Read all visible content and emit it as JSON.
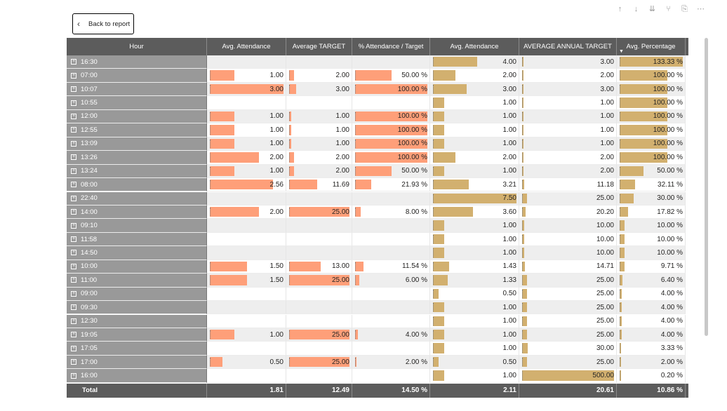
{
  "back_button": {
    "label": "Back to report",
    "icon": "chevron-left-icon"
  },
  "header_icons": [
    "arrow-up-icon",
    "arrow-down-icon",
    "double-arrow-down-icon",
    "hierarchy-icon",
    "copy-icon",
    "more-options-icon"
  ],
  "columns": [
    "Hour",
    "Avg. Attendance",
    "Average TARGET",
    "% Attendance / Target",
    "Avg. Attendance",
    "AVERAGE ANNUAL TARGET",
    "Avg. Percentage"
  ],
  "sorted_column": "Avg. Percentage",
  "colors": {
    "header_bg": "#5c5c5c",
    "row_header_bg": "#999999",
    "orange_bar": "#fe9f79",
    "gold_bar": "#d2b06f",
    "alt_row": "#eeeeee"
  },
  "rows": [
    {
      "hour": "16:30",
      "a": "",
      "b": "",
      "c": "",
      "d": "4.00",
      "e": "3.00",
      "f": "133.33 %"
    },
    {
      "hour": "07:00",
      "a": "1.00",
      "b": "2.00",
      "c": "50.00 %",
      "d": "2.00",
      "e": "2.00",
      "f": "100.00 %"
    },
    {
      "hour": "10:07",
      "a": "3.00",
      "b": "3.00",
      "c": "100.00 %",
      "d": "3.00",
      "e": "3.00",
      "f": "100.00 %"
    },
    {
      "hour": "10:55",
      "a": "",
      "b": "",
      "c": "",
      "d": "1.00",
      "e": "1.00",
      "f": "100.00 %"
    },
    {
      "hour": "12:00",
      "a": "1.00",
      "b": "1.00",
      "c": "100.00 %",
      "d": "1.00",
      "e": "1.00",
      "f": "100.00 %"
    },
    {
      "hour": "12:55",
      "a": "1.00",
      "b": "1.00",
      "c": "100.00 %",
      "d": "1.00",
      "e": "1.00",
      "f": "100.00 %"
    },
    {
      "hour": "13:09",
      "a": "1.00",
      "b": "1.00",
      "c": "100.00 %",
      "d": "1.00",
      "e": "1.00",
      "f": "100.00 %"
    },
    {
      "hour": "13:26",
      "a": "2.00",
      "b": "2.00",
      "c": "100.00 %",
      "d": "2.00",
      "e": "2.00",
      "f": "100.00 %"
    },
    {
      "hour": "13:24",
      "a": "1.00",
      "b": "2.00",
      "c": "50.00 %",
      "d": "1.00",
      "e": "2.00",
      "f": "50.00 %"
    },
    {
      "hour": "08:00",
      "a": "2.56",
      "b": "11.69",
      "c": "21.93 %",
      "d": "3.21",
      "e": "11.18",
      "f": "32.11 %"
    },
    {
      "hour": "22:40",
      "a": "",
      "b": "",
      "c": "",
      "d": "7.50",
      "e": "25.00",
      "f": "30.00 %"
    },
    {
      "hour": "14:00",
      "a": "2.00",
      "b": "25.00",
      "c": "8.00 %",
      "d": "3.60",
      "e": "20.20",
      "f": "17.82 %"
    },
    {
      "hour": "09:10",
      "a": "",
      "b": "",
      "c": "",
      "d": "1.00",
      "e": "10.00",
      "f": "10.00 %"
    },
    {
      "hour": "11:58",
      "a": "",
      "b": "",
      "c": "",
      "d": "1.00",
      "e": "10.00",
      "f": "10.00 %"
    },
    {
      "hour": "14:50",
      "a": "",
      "b": "",
      "c": "",
      "d": "1.00",
      "e": "10.00",
      "f": "10.00 %"
    },
    {
      "hour": "10:00",
      "a": "1.50",
      "b": "13.00",
      "c": "11.54 %",
      "d": "1.43",
      "e": "14.71",
      "f": "9.71 %"
    },
    {
      "hour": "11:00",
      "a": "1.50",
      "b": "25.00",
      "c": "6.00 %",
      "d": "1.33",
      "e": "25.00",
      "f": "6.40 %"
    },
    {
      "hour": "09:00",
      "a": "",
      "b": "",
      "c": "",
      "d": "0.50",
      "e": "25.00",
      "f": "4.00 %"
    },
    {
      "hour": "09:30",
      "a": "",
      "b": "",
      "c": "",
      "d": "1.00",
      "e": "25.00",
      "f": "4.00 %"
    },
    {
      "hour": "12:30",
      "a": "",
      "b": "",
      "c": "",
      "d": "1.00",
      "e": "25.00",
      "f": "4.00 %"
    },
    {
      "hour": "19:05",
      "a": "1.00",
      "b": "25.00",
      "c": "4.00 %",
      "d": "1.00",
      "e": "25.00",
      "f": "4.00 %"
    },
    {
      "hour": "17:05",
      "a": "",
      "b": "",
      "c": "",
      "d": "1.00",
      "e": "30.00",
      "f": "3.33 %"
    },
    {
      "hour": "17:00",
      "a": "0.50",
      "b": "25.00",
      "c": "2.00 %",
      "d": "0.50",
      "e": "25.00",
      "f": "2.00 %"
    },
    {
      "hour": "16:00",
      "a": "",
      "b": "",
      "c": "",
      "d": "1.00",
      "e": "500.00",
      "f": "0.20 %"
    }
  ],
  "total": {
    "label": "Total",
    "a": "1.81",
    "b": "12.49",
    "c": "14.50 %",
    "d": "2.11",
    "e": "20.61",
    "f": "10.86 %"
  }
}
